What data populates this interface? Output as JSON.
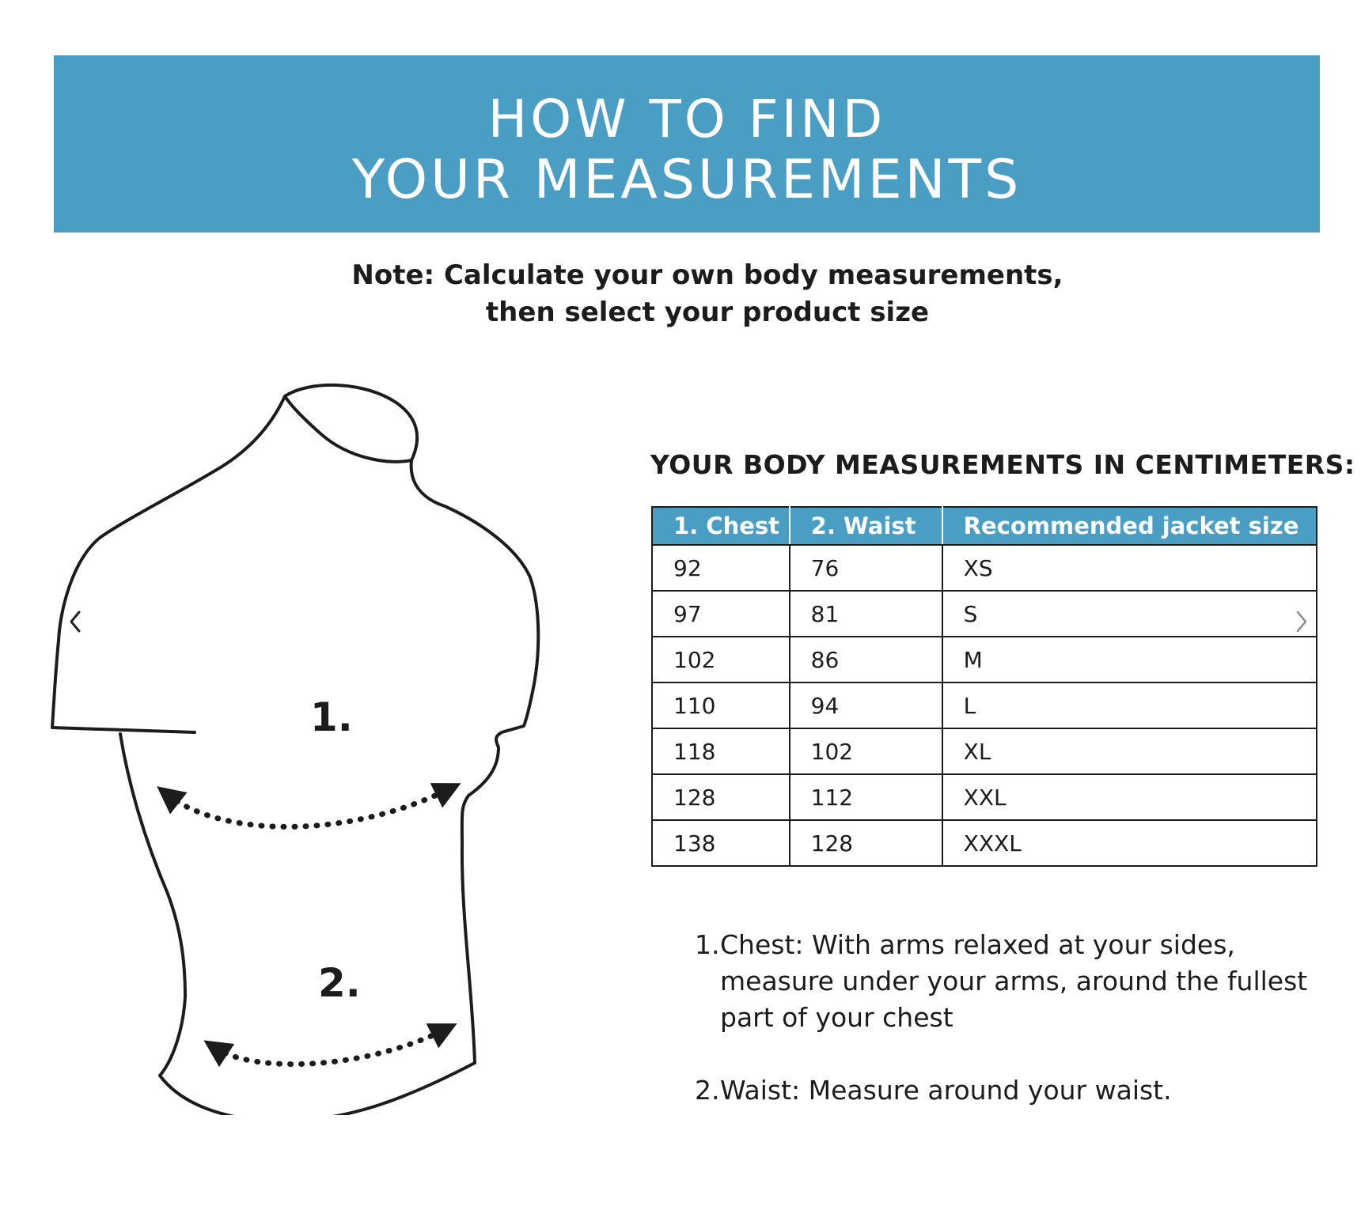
{
  "header": {
    "title_line1": "HOW TO FIND",
    "title_line2": "YOUR MEASUREMENTS",
    "background_color": "#4a9ec4"
  },
  "note": {
    "line1": "Note: Calculate your own body measurements,",
    "line2": "then select your product size"
  },
  "figure": {
    "label_chest": "1.",
    "label_waist": "2.",
    "icon": "torso-outline-icon"
  },
  "carousel": {
    "prev_icon": "chevron-left-icon",
    "next_icon": "chevron-right-icon"
  },
  "table": {
    "heading": "YOUR BODY MEASUREMENTS IN CENTIMETERS:",
    "columns": [
      "1. Chest",
      "2. Waist",
      "Recommended jacket size"
    ],
    "rows": [
      [
        "92",
        "76",
        "XS"
      ],
      [
        "97",
        "81",
        "S"
      ],
      [
        "102",
        "86",
        "M"
      ],
      [
        "110",
        "94",
        "L"
      ],
      [
        "118",
        "102",
        "XL"
      ],
      [
        "128",
        "112",
        "XXL"
      ],
      [
        "138",
        "128",
        "XXXL"
      ]
    ]
  },
  "instructions": [
    {
      "num": "1.",
      "text": "Chest: With arms relaxed at your sides, measure under your arms, around the fullest part of your chest"
    },
    {
      "num": "2.",
      "text": "Waist: Measure around your waist."
    }
  ]
}
